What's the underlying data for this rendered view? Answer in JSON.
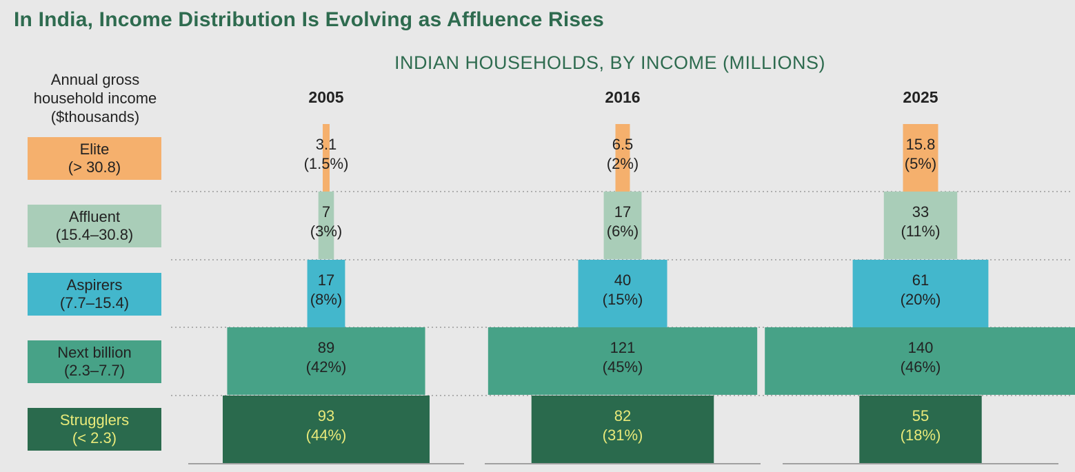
{
  "title": "In India, Income Distribution Is Evolving as Affluence Rises",
  "subtitle": "INDIAN HOUSEHOLDS, BY INCOME (MILLIONS)",
  "income_header": "Annual gross household income ($thousands)",
  "legend": [
    {
      "name": "Elite",
      "range": "(> 30.8)"
    },
    {
      "name": "Affluent",
      "range": "(15.4–30.8)"
    },
    {
      "name": "Aspirers",
      "range": "(7.7–15.4)"
    },
    {
      "name": "Next billion",
      "range": "(2.3–7.7)"
    },
    {
      "name": "Strugglers",
      "range": "(< 2.3)"
    }
  ],
  "colors": {
    "Elite": "#f5b06d",
    "Affluent": "#a9cdb8",
    "Aspirers": "#43b7cc",
    "Next billion": "#47a287",
    "Strugglers": "#2a6a4d",
    "strugglers_text": "#e9ea7a",
    "default_text": "#222222"
  },
  "chart_data": {
    "type": "bar",
    "orientation": "horizontal-stacked-pyramid",
    "categories": [
      "Elite",
      "Affluent",
      "Aspirers",
      "Next billion",
      "Strugglers"
    ],
    "columns": [
      "2005",
      "2016",
      "2025"
    ],
    "series": [
      {
        "name": "2005",
        "values": [
          3.1,
          7,
          17,
          89,
          93
        ],
        "labels": [
          "3.1",
          "7",
          "17",
          "89",
          "93"
        ],
        "shares": [
          "(1.5%)",
          "(3%)",
          "(8%)",
          "(42%)",
          "(44%)"
        ]
      },
      {
        "name": "2016",
        "values": [
          6.5,
          17,
          40,
          121,
          82
        ],
        "labels": [
          "6.5",
          "17",
          "40",
          "121",
          "82"
        ],
        "shares": [
          "(2%)",
          "(6%)",
          "(15%)",
          "(45%)",
          "(31%)"
        ]
      },
      {
        "name": "2025",
        "values": [
          15.8,
          33,
          61,
          140,
          55
        ],
        "labels": [
          "15.8",
          "33",
          "61",
          "140",
          "55"
        ],
        "shares": [
          "(5%)",
          "(11%)",
          "(20%)",
          "(46%)",
          "(18%)"
        ]
      }
    ],
    "grid": "dotted separators between income bands"
  }
}
